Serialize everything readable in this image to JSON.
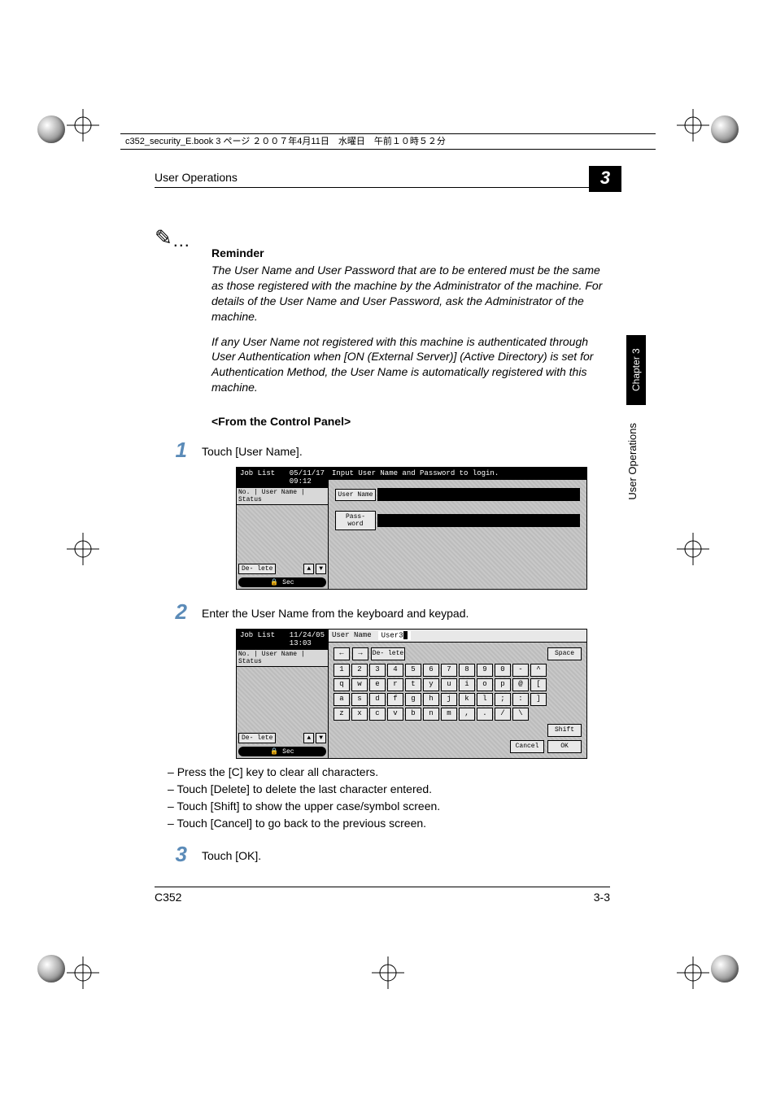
{
  "header_bar": "c352_security_E.book  3 ページ  ２００７年4月11日　水曜日　午前１０時５２分",
  "running_head": "User Operations",
  "chapter_number": "3",
  "side_tab": "Chapter 3",
  "side_label": "User Operations",
  "reminder": {
    "title": "Reminder",
    "p1": "The User Name and User Password that are to be entered must be the same as those registered with the machine by the Administrator of the machine. For details of the User Name and User Password, ask the Administrator of the machine.",
    "p2": "If any User Name not registered with this machine is authenticated through User Authentication when [ON (External Server)] (Active Directory) is set for Authentication Method, the User Name is automatically registered with this machine."
  },
  "subhead": "<From the Control Panel>",
  "steps": {
    "s1": {
      "num": "1",
      "text": "Touch [User Name]."
    },
    "s2": {
      "num": "2",
      "text": "Enter the User Name from the keyboard and keypad."
    },
    "s3": {
      "num": "3",
      "text": "Touch [OK]."
    }
  },
  "sublist": {
    "a": "Press the [C] key to clear all characters.",
    "b": "Touch [Delete] to delete the last character entered.",
    "c": "Touch [Shift] to show the upper case/symbol screen.",
    "d": "Touch [Cancel] to go back to the previous screen."
  },
  "panel1": {
    "job": "Job List",
    "date": "05/11/17",
    "time": "09:12",
    "cols": "No. | User Name | Status",
    "delete": "De- lete",
    "up": "▲",
    "down": "▼",
    "sec": "🔒 Sec",
    "msg": "Input User Name and Password to login.",
    "user_label": "User Name",
    "pass_label": "Pass- word"
  },
  "panel2": {
    "job": "Job List",
    "date": "11/24/05",
    "time": "13:03",
    "cols": "No. | User Name | Status",
    "delete": "De- lete",
    "up": "▲",
    "down": "▼",
    "sec": "🔒 Sec",
    "top_label": "User Name",
    "value": "User3",
    "arrow_l": "←",
    "arrow_r": "→",
    "del_btn": "De- lete",
    "space": "Space",
    "row1": [
      "1",
      "2",
      "3",
      "4",
      "5",
      "6",
      "7",
      "8",
      "9",
      "0",
      "-",
      "^"
    ],
    "row2": [
      "q",
      "w",
      "e",
      "r",
      "t",
      "y",
      "u",
      "i",
      "o",
      "p",
      "@",
      "["
    ],
    "row3": [
      "a",
      "s",
      "d",
      "f",
      "g",
      "h",
      "j",
      "k",
      "l",
      ";",
      ":",
      "]"
    ],
    "row4": [
      "z",
      "x",
      "c",
      "v",
      "b",
      "n",
      "m",
      ",",
      ".",
      "/",
      "\\"
    ],
    "shift": "Shift",
    "cancel": "Cancel",
    "ok": "OK"
  },
  "footer": {
    "left": "C352",
    "right": "3-3"
  }
}
